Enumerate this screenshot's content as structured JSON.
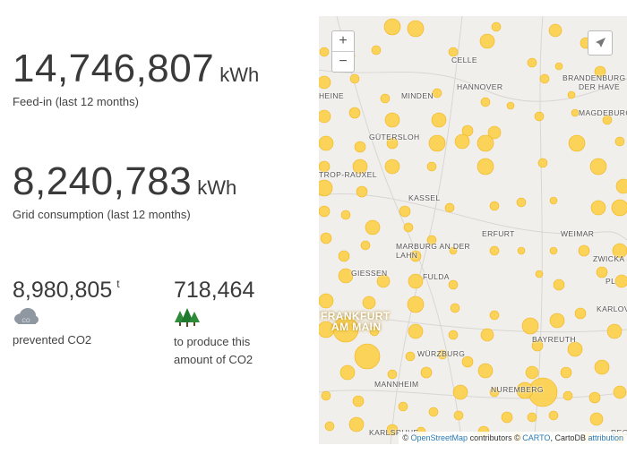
{
  "stats": {
    "feed_in": {
      "value": "14,746,807",
      "unit": "kWh",
      "label": "Feed-in (last 12 months)"
    },
    "grid": {
      "value": "8,240,783",
      "unit": "kWh",
      "label": "Grid consumption (last 12 months)"
    },
    "co2": {
      "value": "8,980,805",
      "unit": "t",
      "label": "prevented CO2",
      "icon": "cloud-co2-icon"
    },
    "trees": {
      "value": "718,464",
      "label_line1": "to produce this",
      "label_line2": "amount of CO2",
      "icon": "trees-icon"
    }
  },
  "map": {
    "zoom_in": "+",
    "zoom_out": "−",
    "locate_icon": "navigation-arrow-icon",
    "cities": {
      "celle": "CELLE",
      "brandenburg": "BRANDENBURG",
      "brandenburg2": "DER HAVE",
      "heine": "HEINE",
      "minden": "MINDEN",
      "hannover": "HANNOVER",
      "magdeburg": "MAGDEBURG",
      "guetersloh": "GÜTERSLOH",
      "castrop": "TROP-RAUXEL",
      "kassel": "KASSEL",
      "erfurt": "ERFURT",
      "weimar": "WEIMAR",
      "zwick": "ZWICKA",
      "marburg1": "MARBURG AN DER",
      "marburg2": "LAHN",
      "giessen": "GIESSEN",
      "fulda": "FULDA",
      "pl": "PL",
      "frankfurt1": "FRANKFURT",
      "frankfurt2": "AM MAIN",
      "bayreuth": "BAYREUTH",
      "karlov": "KARLOV",
      "wuerzburg": "WÜRZBURG",
      "mannheim": "MANNHEIM",
      "nuremberg": "NUREMBERG",
      "karlsruhe": "KARLSRUHE",
      "reg": "REG"
    },
    "attribution": {
      "copy1": "©",
      "osm": "OpenStreetMap",
      "contrib": "contributors ©",
      "carto": "CARTO",
      "cartodb": ", CartoDB",
      "attr_link": "attribution"
    },
    "bubble_color": "#fcd04c",
    "bubble_stroke": "#f0b41c"
  }
}
